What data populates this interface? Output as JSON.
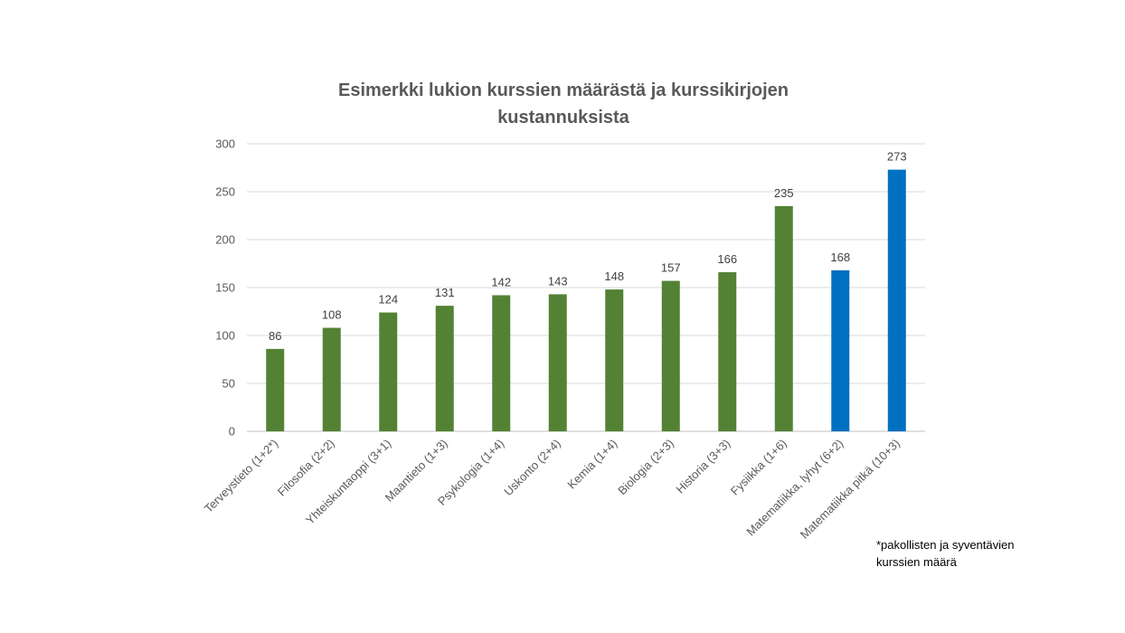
{
  "chart_data": {
    "type": "bar",
    "title": [
      "Esimerkki lukion kurssien määrästä ja kurssikirjojen",
      "kustannuksista"
    ],
    "xlabel": "",
    "ylabel": "",
    "ylim": [
      0,
      300
    ],
    "yticks": [
      0,
      50,
      100,
      150,
      200,
      250,
      300
    ],
    "grid": true,
    "legend": "none",
    "categories": [
      "Terveystieto (1+2*)",
      "Filosofia (2+2)",
      "Yhteiskuntaoppi (3+1)",
      "Maantieto (1+3)",
      "Psykologia (1+4)",
      "Uskonto (2+4)",
      "Kemia (1+4)",
      "Biologia (2+3)",
      "Historia (3+3)",
      "Fysiikka (1+6)",
      "Matematiikka, lyhyt (6+2)",
      "Matematiikka pitkä (10+3)"
    ],
    "values": [
      86,
      108,
      124,
      131,
      142,
      143,
      148,
      157,
      166,
      235,
      168,
      273
    ],
    "colors": [
      "#548235",
      "#548235",
      "#548235",
      "#548235",
      "#548235",
      "#548235",
      "#548235",
      "#548235",
      "#548235",
      "#548235",
      "#0070c0",
      "#0070c0"
    ]
  },
  "footnote": {
    "line1": "*pakollisten ja syventävien",
    "line2": "kurssien määrä"
  }
}
